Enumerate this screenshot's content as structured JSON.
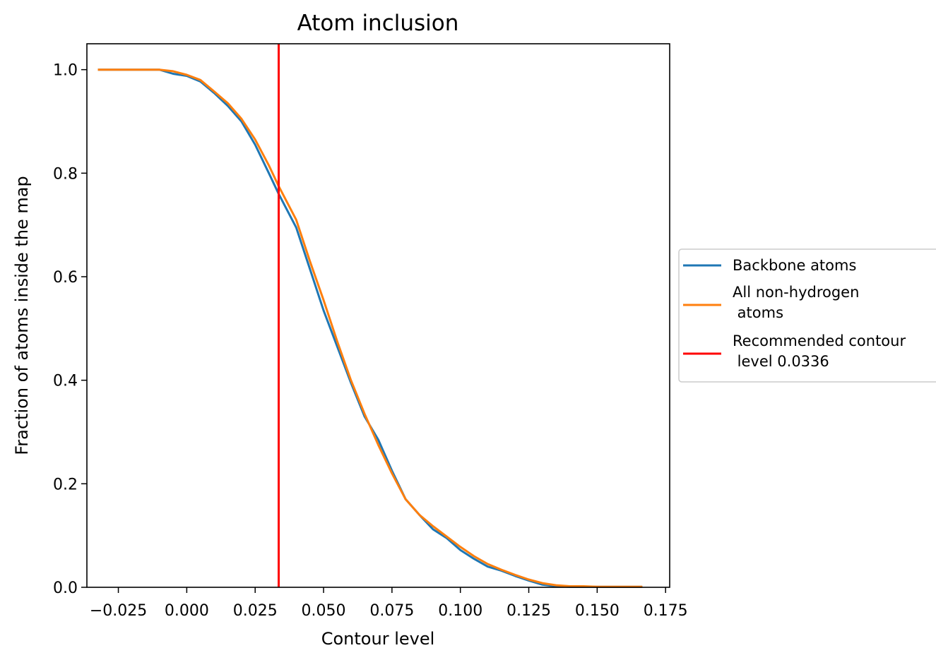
{
  "chart_data": {
    "type": "line",
    "title": "Atom inclusion",
    "xlabel": "Contour level",
    "ylabel": "Fraction of atoms inside the map",
    "xlim": [
      -0.0365,
      0.1765
    ],
    "ylim": [
      0.0,
      1.05
    ],
    "xticks": [
      -0.025,
      0.0,
      0.025,
      0.05,
      0.075,
      0.1,
      0.125,
      0.15,
      0.175
    ],
    "xtick_labels": [
      "−0.025",
      "0.000",
      "0.025",
      "0.050",
      "0.075",
      "0.100",
      "0.125",
      "0.150",
      "0.175"
    ],
    "yticks": [
      0.0,
      0.2,
      0.4,
      0.6,
      0.8,
      1.0
    ],
    "ytick_labels": [
      "0.0",
      "0.2",
      "0.4",
      "0.6",
      "0.8",
      "1.0"
    ],
    "grid": false,
    "legend_position": "outside right",
    "series": [
      {
        "name": "Backbone atoms",
        "color": "#1f77b4",
        "x": [
          -0.0325,
          -0.02,
          -0.01,
          -0.005,
          0.0,
          0.005,
          0.01,
          0.015,
          0.02,
          0.025,
          0.03,
          0.0336,
          0.04,
          0.045,
          0.05,
          0.055,
          0.06,
          0.065,
          0.07,
          0.075,
          0.08,
          0.085,
          0.09,
          0.095,
          0.1,
          0.105,
          0.11,
          0.115,
          0.12,
          0.125,
          0.13,
          0.135,
          0.14,
          0.145,
          0.15,
          0.155,
          0.16,
          0.1665
        ],
        "y": [
          1.0,
          1.0,
          1.0,
          0.992,
          0.988,
          0.977,
          0.955,
          0.93,
          0.9,
          0.855,
          0.8,
          0.76,
          0.695,
          0.615,
          0.535,
          0.465,
          0.395,
          0.33,
          0.285,
          0.225,
          0.17,
          0.14,
          0.112,
          0.095,
          0.072,
          0.055,
          0.04,
          0.032,
          0.022,
          0.013,
          0.005,
          0.002,
          0.001,
          0.001,
          0.001,
          0.001,
          0.001,
          0.001
        ]
      },
      {
        "name": "All non-hydrogen\n atoms",
        "color": "#ff7f0e",
        "x": [
          -0.0325,
          -0.02,
          -0.01,
          -0.005,
          0.0,
          0.005,
          0.01,
          0.015,
          0.02,
          0.025,
          0.03,
          0.0336,
          0.04,
          0.045,
          0.05,
          0.055,
          0.06,
          0.065,
          0.07,
          0.075,
          0.08,
          0.085,
          0.09,
          0.095,
          0.1,
          0.105,
          0.11,
          0.115,
          0.12,
          0.125,
          0.13,
          0.135,
          0.14,
          0.145,
          0.15,
          0.155,
          0.16,
          0.1665
        ],
        "y": [
          1.0,
          1.0,
          1.0,
          0.997,
          0.99,
          0.98,
          0.958,
          0.935,
          0.905,
          0.865,
          0.815,
          0.775,
          0.71,
          0.63,
          0.555,
          0.475,
          0.4,
          0.335,
          0.275,
          0.22,
          0.17,
          0.14,
          0.118,
          0.098,
          0.078,
          0.06,
          0.045,
          0.034,
          0.024,
          0.015,
          0.008,
          0.004,
          0.002,
          0.002,
          0.001,
          0.001,
          0.001,
          0.001
        ]
      },
      {
        "name": "Recommended contour\n level 0.0336",
        "color": "#ff0000",
        "type": "vline",
        "x_value": 0.0336
      }
    ]
  }
}
